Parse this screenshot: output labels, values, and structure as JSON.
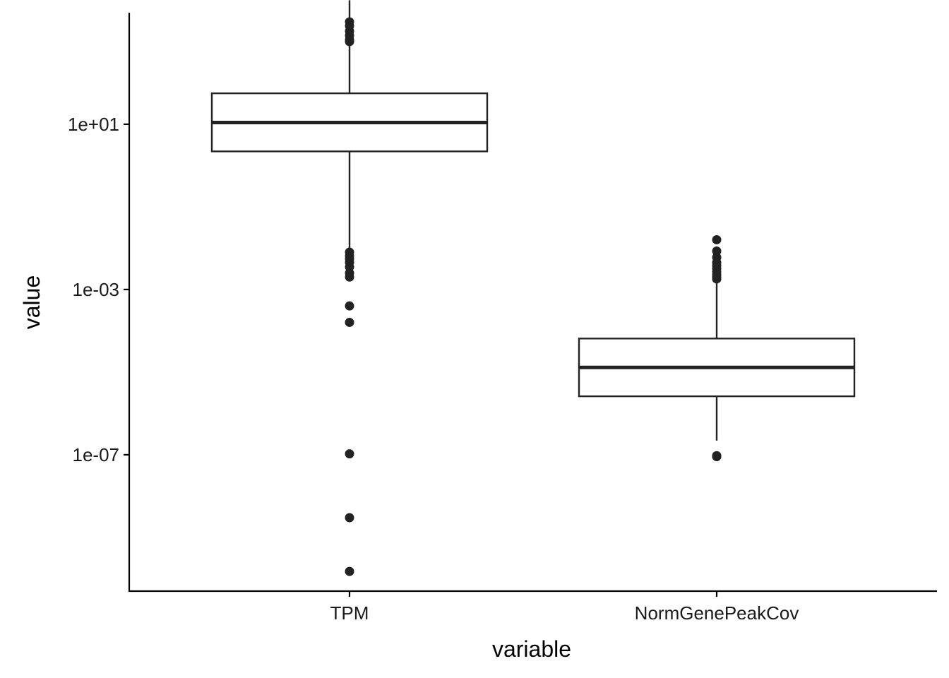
{
  "chart_data": {
    "type": "boxplot",
    "xlabel": "variable",
    "ylabel": "value",
    "y_scale": "log10",
    "ylim": [
      5e-11,
      5000
    ],
    "y_ticks": [
      {
        "value": 10,
        "label": "1e+01"
      },
      {
        "value": 0.001,
        "label": "1e-03"
      },
      {
        "value": 1e-07,
        "label": "1e-07"
      }
    ],
    "categories": [
      "TPM",
      "NormGenePeakCov"
    ],
    "boxes": [
      {
        "category": "TPM",
        "whisker_low": 0.008,
        "q1": 2.2,
        "median": 11,
        "q3": 56,
        "whisker_high": 10000,
        "outliers": [
          3000,
          2400,
          1800,
          1400,
          1100,
          1000,
          0.008,
          0.0065,
          0.0055,
          0.0045,
          0.0035,
          0.0025,
          0.002,
          0.0004,
          0.00016,
          1.05e-07,
          3e-09,
          1.5e-10
        ]
      },
      {
        "category": "NormGenePeakCov",
        "whisker_low": 2.2e-07,
        "q1": 2.6e-06,
        "median": 1.3e-05,
        "q3": 6.5e-05,
        "whisker_high": 0.0017,
        "outliers": [
          0.016,
          0.0085,
          0.006,
          0.0045,
          0.0038,
          0.0032,
          0.0027,
          0.0023,
          0.002,
          0.0018,
          9.5e-08,
          9e-08
        ]
      }
    ],
    "grid": false,
    "legend": "none"
  }
}
